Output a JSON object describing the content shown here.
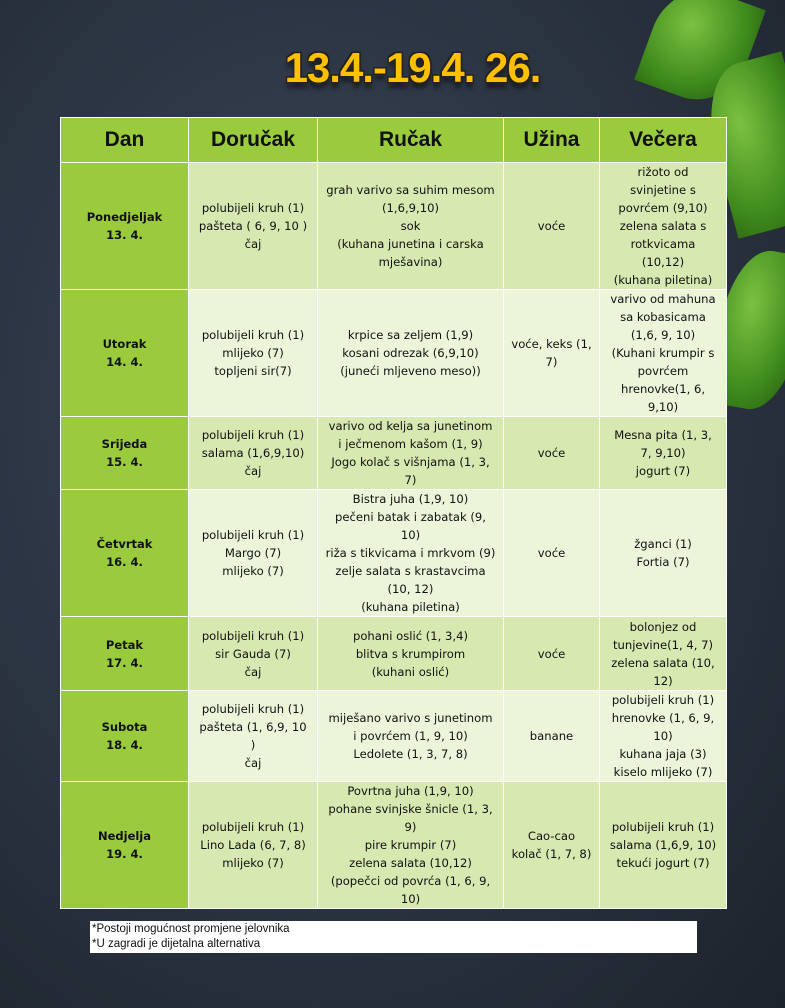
{
  "title": "13.4.-19.4. 26.",
  "headers": [
    "Dan",
    "Doručak",
    "Ručak",
    "Užina",
    "Večera"
  ],
  "rows": [
    {
      "day": [
        "Ponedjeljak",
        "13. 4."
      ],
      "dorucak": [
        "polubijeli kruh (1)",
        "pašteta ( 6, 9, 10 )",
        "čaj"
      ],
      "rucak": [
        "grah varivo sa suhim mesom",
        "(1,6,9,10)",
        "sok",
        "(kuhana junetina i carska",
        "mješavina)"
      ],
      "uzina": [
        "voće"
      ],
      "vecera": [
        "rižoto od",
        "svinjetine s",
        "povrćem (9,10)",
        "zelena salata s",
        "rotkvicama",
        "(10,12)",
        "(kuhana piletina)"
      ]
    },
    {
      "day": [
        "Utorak",
        "14. 4."
      ],
      "dorucak": [
        "polubijeli kruh (1)",
        "mlijeko (7)",
        "topljeni sir(7)"
      ],
      "rucak": [
        "krpice sa zeljem (1,9)",
        "kosani odrezak (6,9,10)",
        "(juneći mljeveno meso))"
      ],
      "uzina": [
        "voće, keks (1,",
        "7)"
      ],
      "vecera": [
        "varivo od mahuna",
        "sa kobasicama",
        "(1,6, 9, 10)",
        "(Kuhani krumpir s",
        "povrćem",
        "hrenovke(1, 6,",
        "9,10)"
      ]
    },
    {
      "day": [
        "Srijeda",
        "15. 4."
      ],
      "dorucak": [
        "polubijeli kruh (1)",
        "salama (1,6,9,10)",
        "čaj"
      ],
      "rucak": [
        "varivo od kelja sa junetinom",
        "i ječmenom kašom (1, 9)",
        "Jogo kolač s višnjama (1, 3,",
        "7)"
      ],
      "uzina": [
        "voće"
      ],
      "vecera": [
        "Mesna pita (1, 3,",
        "7, 9,10)",
        "jogurt (7)"
      ]
    },
    {
      "day": [
        "Četvrtak",
        "16. 4."
      ],
      "dorucak": [
        "polubijeli kruh (1)",
        "Margo (7)",
        "mlijeko (7)"
      ],
      "rucak": [
        "Bistra juha (1,9, 10)",
        "pečeni batak i zabatak (9,",
        "10)",
        "riža s tikvicama i mrkvom (9)",
        "zelje salata s krastavcima",
        "(10, 12)",
        "(kuhana piletina)"
      ],
      "uzina": [
        "voće"
      ],
      "vecera": [
        "žganci (1)",
        "Fortia (7)"
      ]
    },
    {
      "day": [
        "Petak",
        "17. 4."
      ],
      "dorucak": [
        "polubijeli kruh (1)",
        "sir Gauda (7)",
        "čaj"
      ],
      "rucak": [
        "pohani oslić (1, 3,4)",
        "blitva s krumpirom",
        "(kuhani oslić)"
      ],
      "uzina": [
        "voće"
      ],
      "vecera": [
        "bolonjez od",
        "tunjevine(1, 4, 7)",
        "zelena salata (10,",
        "12)"
      ]
    },
    {
      "day": [
        "Subota",
        "18. 4."
      ],
      "dorucak": [
        "polubijeli kruh (1)",
        "pašteta (1, 6,9, 10",
        ")",
        "čaj"
      ],
      "rucak": [
        "miješano varivo s junetinom",
        "i povrćem (1, 9, 10)",
        "Ledolete (1, 3, 7, 8)"
      ],
      "uzina": [
        "banane"
      ],
      "vecera": [
        "polubijeli kruh (1)",
        "hrenovke (1, 6, 9,",
        "10)",
        "kuhana jaja (3)",
        "kiselo mlijeko (7)"
      ]
    },
    {
      "day": [
        "Nedjelja",
        "19. 4."
      ],
      "dorucak": [
        "polubijeli kruh (1)",
        "Lino Lada (6, 7, 8)",
        "mlijeko (7)"
      ],
      "rucak": [
        "Povrtna juha (1,9, 10)",
        "pohane svinjske šnicle (1, 3,",
        "9)",
        "pire krumpir (7)",
        "zelena salata (10,12)",
        "(popečci od povrća (1, 6, 9,",
        "10)"
      ],
      "uzina": [
        "Cao-cao",
        "kolač (1, 7, 8)"
      ],
      "vecera": [
        "polubijeli kruh (1)",
        "salama (1,6,9, 10)",
        "tekući jogurt (7)"
      ]
    }
  ],
  "notes": [
    "*Postoji mogućnost promjene jelovnika",
    "*U zagradi je dijetalna alternativa"
  ],
  "colors": {
    "header": "#9acb3c",
    "row_dark": "#d7e8b1",
    "row_light": "#ebf5da",
    "title": "#ffc000"
  }
}
